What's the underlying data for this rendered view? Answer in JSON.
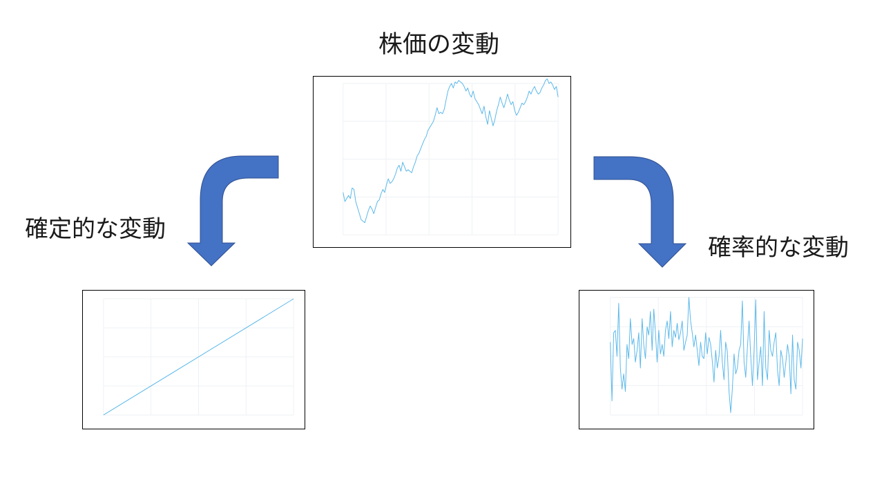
{
  "slide": {
    "title": "株価の変動",
    "left_label": "確定的な変動",
    "right_label": "確率的な変動"
  },
  "colors": {
    "arrow_fill": "#4472C4",
    "arrow_stroke": "#2F4F8F",
    "line": "#5BB8EA",
    "grid": "#EEF1F4",
    "panel_border": "#000000"
  },
  "chart_data": [
    {
      "type": "line",
      "name": "stock-price-chart",
      "title": "",
      "xlabel": "",
      "ylabel": "",
      "grid": true,
      "x_grid_count": 5,
      "y_grid_count": 4,
      "ylim": [
        0,
        1
      ],
      "values": [
        0.28,
        0.22,
        0.24,
        0.26,
        0.24,
        0.31,
        0.3,
        0.22,
        0.18,
        0.14,
        0.1,
        0.09,
        0.08,
        0.12,
        0.16,
        0.19,
        0.17,
        0.14,
        0.18,
        0.22,
        0.23,
        0.27,
        0.3,
        0.28,
        0.33,
        0.37,
        0.34,
        0.35,
        0.37,
        0.4,
        0.44,
        0.46,
        0.42,
        0.48,
        0.45,
        0.42,
        0.43,
        0.42,
        0.41,
        0.45,
        0.48,
        0.52,
        0.54,
        0.57,
        0.6,
        0.63,
        0.65,
        0.69,
        0.71,
        0.73,
        0.75,
        0.79,
        0.84,
        0.8,
        0.81,
        0.8,
        0.83,
        0.89,
        0.95,
        0.98,
        1.0,
        0.97,
        1.01,
        1.0,
        1.02,
        1.01,
        1.0,
        0.98,
        0.95,
        0.97,
        0.93,
        0.91,
        0.95,
        0.9,
        0.88,
        0.86,
        0.83,
        0.8,
        0.85,
        0.78,
        0.73,
        0.82,
        0.77,
        0.72,
        0.76,
        0.82,
        0.86,
        0.91,
        0.87,
        0.84,
        0.88,
        0.93,
        0.89,
        0.86,
        0.88,
        0.82,
        0.79,
        0.81,
        0.84,
        0.87,
        0.86,
        0.88,
        0.91,
        0.95,
        0.93,
        0.96,
        0.98,
        0.95,
        0.93,
        0.94,
        0.97,
        0.99,
        1.02,
        1.03,
        1.0,
        1.01,
        0.99,
        0.96,
        0.98,
        0.91
      ]
    },
    {
      "type": "line",
      "name": "deterministic-chart",
      "title": "",
      "xlabel": "",
      "ylabel": "",
      "grid": true,
      "x_grid_count": 4,
      "y_grid_count": 4,
      "ylim": [
        0,
        1
      ],
      "x": [
        0,
        1
      ],
      "values": [
        0,
        1
      ]
    },
    {
      "type": "line",
      "name": "stochastic-chart",
      "title": "",
      "xlabel": "",
      "ylabel": "",
      "grid": true,
      "x_grid_count": 4,
      "y_grid_count": 4,
      "ylim": [
        0,
        1
      ],
      "values": [
        0.62,
        0.12,
        0.7,
        0.72,
        0.5,
        0.95,
        0.4,
        0.22,
        0.35,
        0.2,
        0.6,
        0.48,
        0.82,
        0.6,
        0.65,
        0.45,
        0.55,
        0.7,
        0.4,
        0.82,
        0.6,
        0.48,
        0.75,
        0.68,
        0.88,
        0.55,
        0.9,
        0.7,
        0.45,
        0.72,
        0.52,
        0.6,
        0.5,
        0.72,
        0.8,
        0.65,
        0.88,
        0.58,
        0.72,
        0.66,
        0.78,
        0.64,
        0.7,
        0.8,
        0.55,
        0.62,
        0.68,
        1.0,
        0.8,
        0.7,
        0.58,
        0.68,
        0.55,
        0.42,
        0.62,
        0.5,
        0.48,
        0.7,
        0.52,
        0.66,
        0.6,
        0.46,
        0.28,
        0.55,
        0.4,
        0.5,
        0.72,
        0.45,
        0.3,
        0.62,
        0.54,
        0.2,
        0.02,
        0.22,
        0.52,
        0.35,
        0.4,
        0.55,
        0.6,
        0.97,
        0.45,
        0.32,
        0.58,
        0.8,
        0.5,
        0.25,
        0.55,
        0.98,
        0.3,
        0.45,
        0.58,
        0.25,
        0.88,
        0.4,
        0.3,
        0.72,
        0.55,
        0.5,
        0.62,
        0.7,
        0.38,
        0.25,
        0.55,
        0.48,
        0.32,
        0.45,
        0.6,
        0.5,
        0.18,
        0.68,
        0.3,
        0.22,
        0.62,
        0.55,
        0.4,
        0.65
      ]
    }
  ]
}
